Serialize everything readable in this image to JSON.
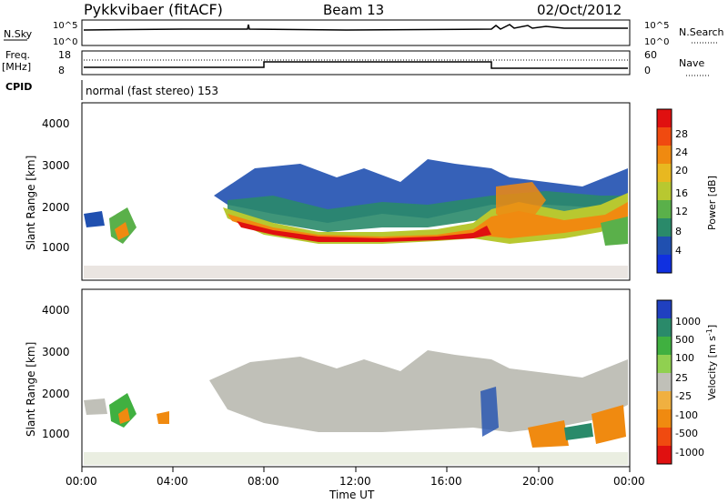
{
  "header": {
    "station": "Pykkvibaer (fitACF)",
    "beam": "Beam 13",
    "date": "02/Oct/2012"
  },
  "strips": {
    "nsky_label": "N.Sky",
    "nsky_ticks": [
      "10^5",
      "10^0"
    ],
    "nsearch_label": "N.Search",
    "nsearch_ticks": [
      "10^5",
      "10^0"
    ],
    "freq_label": "Freq.",
    "freq_unit": "[MHz]",
    "freq_ticks": [
      "18",
      "8"
    ],
    "nave_label": "Nave",
    "nave_ticks": [
      "60",
      "0"
    ],
    "cpid_label": "CPID",
    "cpid_text": "normal (fast stereo) 153"
  },
  "panels": {
    "power": {
      "ylabel": "Slant Range [km]",
      "yticks": [
        "4000",
        "3000",
        "2000",
        "1000"
      ],
      "cbar_label": "Power [dB]",
      "cbar_ticks": [
        "28",
        "24",
        "20",
        "16",
        "12",
        "8",
        "4"
      ],
      "cbar_colors": [
        "#e01010",
        "#f04a10",
        "#f08a10",
        "#e8b820",
        "#b8c830",
        "#5ab04a",
        "#2a8a6a",
        "#2050b0",
        "#1030e0"
      ]
    },
    "velocity": {
      "ylabel": "Slant Range [km]",
      "yticks": [
        "4000",
        "3000",
        "2000",
        "1000"
      ],
      "cbar_label": "Velocity [m s",
      "cbar_label_sup": "-1",
      "cbar_label_end": "]",
      "cbar_ticks": [
        "1000",
        "500",
        "100",
        "25",
        "-25",
        "-100",
        "-500",
        "-1000"
      ],
      "cbar_colors": [
        "#2040c0",
        "#2a8a6a",
        "#40b040",
        "#90d050",
        "#c0c0b8",
        "#f0b040",
        "#f08a10",
        "#f04a10",
        "#e01010"
      ]
    }
  },
  "xaxis": {
    "label": "Time UT",
    "ticks": [
      "00:00",
      "04:00",
      "08:00",
      "12:00",
      "16:00",
      "20:00",
      "00:00"
    ]
  },
  "chart_data": [
    {
      "type": "heatmap",
      "title": "Power",
      "xlabel": "Time UT",
      "ylabel": "Slant Range [km]",
      "xlim": [
        "00:00",
        "24:00"
      ],
      "ylim": [
        180,
        4600
      ],
      "colorbar": {
        "label": "Power [dB]",
        "range": [
          0,
          30
        ]
      },
      "features": [
        {
          "desc": "main scatter band",
          "time_start": "06:30",
          "time_end": "24:00",
          "range_km": [
            1300,
            1700
          ],
          "peak_db": 28
        },
        {
          "desc": "upper echo region",
          "time_start": "07:00",
          "time_end": "23:40",
          "range_km": [
            1800,
            3100
          ],
          "typical_db": 8
        },
        {
          "desc": "early patch",
          "time_start": "01:30",
          "time_end": "02:15",
          "range_km": [
            1200,
            1700
          ],
          "typical_db": 20
        }
      ]
    },
    {
      "type": "heatmap",
      "title": "Velocity",
      "xlabel": "Time UT",
      "ylabel": "Slant Range [km]",
      "xlim": [
        "00:00",
        "24:00"
      ],
      "ylim": [
        180,
        4600
      ],
      "colorbar": {
        "label": "Velocity [m s-1]",
        "range": [
          -1000,
          1000
        ]
      },
      "features": [
        {
          "desc": "ground scatter (grey)",
          "time_start": "05:30",
          "time_end": "24:00",
          "range_km": [
            1300,
            3100
          ],
          "velocity": 0
        },
        {
          "desc": "positive velocity patch",
          "time_start": "01:30",
          "time_end": "02:10",
          "range_km": [
            1200,
            1700
          ],
          "velocity": 150
        },
        {
          "desc": "negative velocity patches",
          "time_start": "20:00",
          "time_end": "24:00",
          "range_km": [
            900,
            1600
          ],
          "velocity": -300
        }
      ]
    }
  ]
}
